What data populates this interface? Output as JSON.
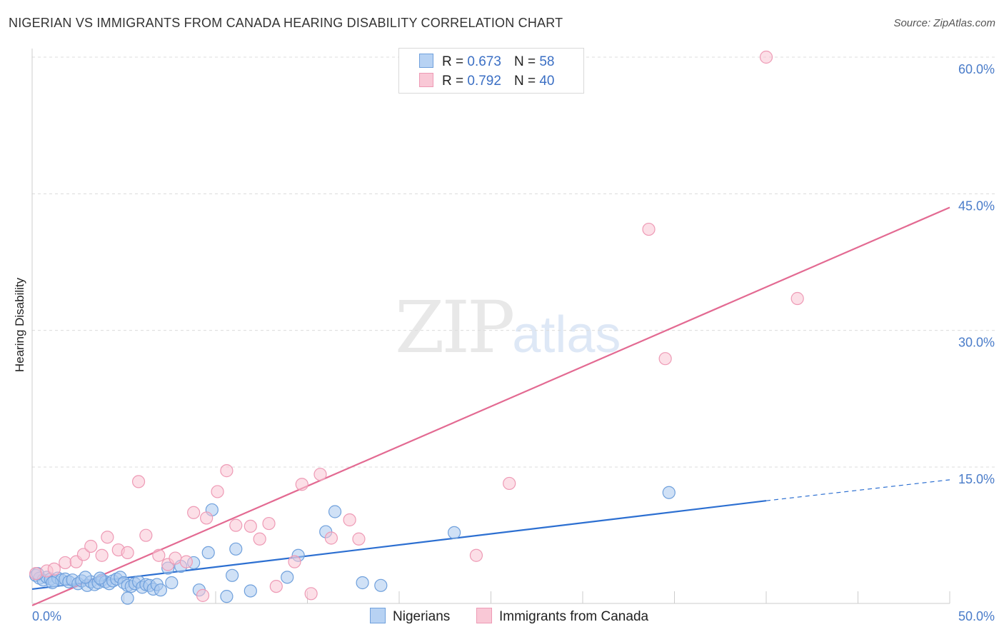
{
  "header": {
    "title": "NIGERIAN VS IMMIGRANTS FROM CANADA HEARING DISABILITY CORRELATION CHART",
    "source": "Source: ZipAtlas.com"
  },
  "watermark": {
    "zip": "ZIP",
    "atlas": "atlas"
  },
  "legend": {
    "nigerians": {
      "r_label": "R =",
      "r_value": "0.673",
      "n_label": "N =",
      "n_value": "58",
      "color": "#a8c8f0"
    },
    "canada": {
      "r_label": "R =",
      "r_value": "0.792",
      "n_label": "N =",
      "n_value": "40",
      "color": "#f7b8cb"
    }
  },
  "bottom_legend": {
    "nigerians": "Nigerians",
    "canada": "Immigrants from Canada"
  },
  "chart_data": {
    "type": "scatter",
    "title": "NIGERIAN VS IMMIGRANTS FROM CANADA HEARING DISABILITY CORRELATION CHART",
    "xlabel": "",
    "ylabel": "Hearing Disability",
    "xlim": [
      0,
      50
    ],
    "ylim": [
      0,
      63
    ],
    "x_tick_labels": [
      "0.0%",
      "50.0%"
    ],
    "y_ticks": [
      15,
      30,
      45,
      60
    ],
    "y_tick_labels": [
      "15.0%",
      "30.0%",
      "45.0%",
      "60.0%"
    ],
    "grid": true,
    "legend_position": "top-center",
    "series": [
      {
        "name": "Nigerians",
        "color": "#6fa0dc",
        "fill": "#aac9ef",
        "trend_color": "#2c6fd1",
        "trend": {
          "x0": 0,
          "y0": 1.6,
          "x1": 40,
          "y1": 11.3,
          "dashed_to_x": 50,
          "dashed_to_y": 13.6
        },
        "points": [
          [
            0.2,
            3.1
          ],
          [
            0.4,
            2.8
          ],
          [
            0.6,
            2.6
          ],
          [
            0.8,
            2.9
          ],
          [
            1.0,
            2.7
          ],
          [
            1.2,
            2.5
          ],
          [
            1.4,
            2.8
          ],
          [
            1.6,
            2.6
          ],
          [
            1.8,
            2.7
          ],
          [
            2.0,
            2.4
          ],
          [
            2.2,
            2.6
          ],
          [
            2.5,
            2.2
          ],
          [
            2.7,
            2.5
          ],
          [
            3.0,
            2.0
          ],
          [
            3.2,
            2.4
          ],
          [
            3.4,
            2.1
          ],
          [
            3.6,
            2.3
          ],
          [
            3.8,
            2.6
          ],
          [
            4.0,
            2.4
          ],
          [
            4.2,
            2.2
          ],
          [
            4.4,
            2.5
          ],
          [
            4.6,
            2.7
          ],
          [
            4.8,
            2.9
          ],
          [
            5.0,
            2.3
          ],
          [
            5.2,
            2.0
          ],
          [
            5.4,
            1.9
          ],
          [
            5.6,
            2.2
          ],
          [
            5.8,
            2.4
          ],
          [
            6.0,
            1.8
          ],
          [
            6.2,
            2.1
          ],
          [
            6.4,
            2.0
          ],
          [
            6.6,
            1.6
          ],
          [
            6.8,
            2.1
          ],
          [
            7.0,
            1.5
          ],
          [
            7.4,
            3.9
          ],
          [
            7.6,
            2.3
          ],
          [
            8.1,
            4.1
          ],
          [
            8.8,
            4.5
          ],
          [
            9.1,
            1.5
          ],
          [
            9.6,
            5.6
          ],
          [
            9.8,
            10.3
          ],
          [
            10.6,
            0.8
          ],
          [
            10.9,
            3.1
          ],
          [
            11.1,
            6.0
          ],
          [
            11.9,
            1.4
          ],
          [
            13.9,
            2.9
          ],
          [
            14.5,
            5.3
          ],
          [
            16.0,
            7.9
          ],
          [
            16.5,
            10.1
          ],
          [
            18.0,
            2.3
          ],
          [
            19.0,
            2.0
          ],
          [
            23.0,
            7.8
          ],
          [
            34.7,
            12.2
          ],
          [
            5.2,
            0.6
          ],
          [
            0.3,
            3.3
          ],
          [
            1.1,
            2.3
          ],
          [
            2.9,
            2.9
          ],
          [
            3.7,
            2.8
          ]
        ]
      },
      {
        "name": "Immigrants from Canada",
        "color": "#ee9ab5",
        "fill": "#f9c4d4",
        "trend_color": "#e36a92",
        "trend": {
          "x0": 0,
          "y0": -0.2,
          "x1": 50,
          "y1": 43.5
        },
        "points": [
          [
            0.2,
            3.3
          ],
          [
            0.8,
            3.6
          ],
          [
            1.2,
            3.8
          ],
          [
            1.8,
            4.5
          ],
          [
            2.4,
            4.6
          ],
          [
            2.8,
            5.4
          ],
          [
            3.2,
            6.3
          ],
          [
            3.8,
            5.3
          ],
          [
            4.1,
            7.3
          ],
          [
            4.7,
            5.9
          ],
          [
            5.2,
            5.6
          ],
          [
            5.8,
            13.4
          ],
          [
            6.2,
            7.5
          ],
          [
            6.9,
            5.3
          ],
          [
            7.4,
            4.3
          ],
          [
            7.8,
            5.0
          ],
          [
            8.4,
            4.6
          ],
          [
            8.8,
            10.0
          ],
          [
            9.3,
            0.9
          ],
          [
            9.5,
            9.4
          ],
          [
            10.1,
            12.3
          ],
          [
            10.6,
            14.6
          ],
          [
            11.1,
            8.6
          ],
          [
            11.9,
            8.5
          ],
          [
            12.4,
            7.1
          ],
          [
            12.9,
            8.8
          ],
          [
            13.3,
            1.9
          ],
          [
            14.3,
            4.6
          ],
          [
            14.7,
            13.1
          ],
          [
            15.2,
            1.1
          ],
          [
            15.7,
            14.2
          ],
          [
            16.3,
            7.2
          ],
          [
            17.3,
            9.2
          ],
          [
            17.8,
            7.1
          ],
          [
            24.2,
            5.3
          ],
          [
            26.0,
            13.2
          ],
          [
            33.6,
            41.1
          ],
          [
            34.5,
            26.9
          ],
          [
            40.0,
            60.0
          ],
          [
            41.7,
            33.5
          ]
        ]
      }
    ]
  }
}
